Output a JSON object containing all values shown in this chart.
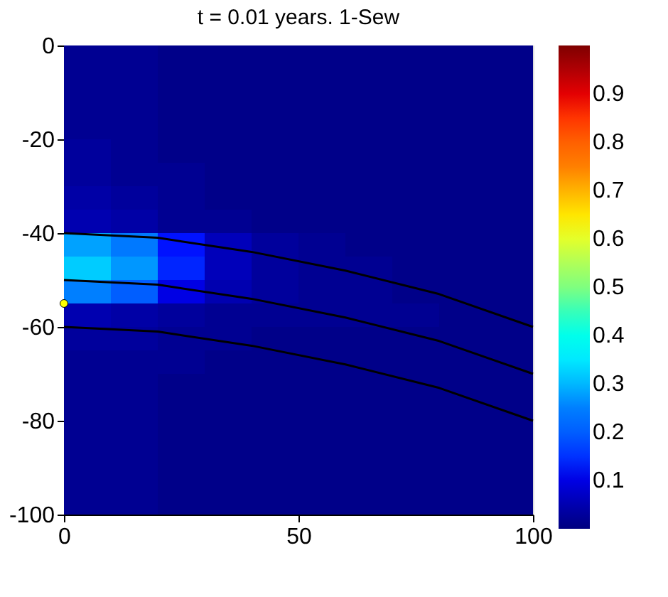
{
  "chart_data": {
    "type": "heatmap",
    "title": "t = 0.01 years. 1-Sew",
    "x": [
      5,
      15,
      25,
      35,
      45,
      55,
      65,
      75,
      85,
      95
    ],
    "cells": [
      [
        0.02,
        0.02,
        0.01,
        0.01,
        0.01,
        0.01,
        0.01,
        0.01,
        0.01,
        0.01
      ],
      [
        0.02,
        0.02,
        0.01,
        0.01,
        0.01,
        0.01,
        0.01,
        0.01,
        0.01,
        0.01
      ],
      [
        0.02,
        0.02,
        0.01,
        0.01,
        0.01,
        0.01,
        0.01,
        0.01,
        0.01,
        0.01
      ],
      [
        0.02,
        0.02,
        0.01,
        0.01,
        0.01,
        0.01,
        0.01,
        0.01,
        0.01,
        0.01
      ],
      [
        0.03,
        0.02,
        0.01,
        0.01,
        0.01,
        0.01,
        0.01,
        0.01,
        0.01,
        0.01
      ],
      [
        0.03,
        0.02,
        0.02,
        0.01,
        0.01,
        0.01,
        0.01,
        0.01,
        0.01,
        0.01
      ],
      [
        0.04,
        0.03,
        0.02,
        0.01,
        0.01,
        0.01,
        0.01,
        0.01,
        0.01,
        0.01
      ],
      [
        0.05,
        0.04,
        0.02,
        0.02,
        0.01,
        0.01,
        0.01,
        0.01,
        0.01,
        0.01
      ],
      [
        0.28,
        0.24,
        0.13,
        0.06,
        0.03,
        0.02,
        0.01,
        0.01,
        0.01,
        0.01
      ],
      [
        0.32,
        0.27,
        0.14,
        0.06,
        0.03,
        0.02,
        0.02,
        0.01,
        0.01,
        0.01
      ],
      [
        0.25,
        0.2,
        0.1,
        0.05,
        0.03,
        0.02,
        0.02,
        0.01,
        0.01,
        0.01
      ],
      [
        0.05,
        0.04,
        0.03,
        0.02,
        0.02,
        0.02,
        0.02,
        0.02,
        0.01,
        0.01
      ],
      [
        0.03,
        0.03,
        0.02,
        0.02,
        0.01,
        0.01,
        0.01,
        0.01,
        0.01,
        0.01
      ],
      [
        0.02,
        0.02,
        0.02,
        0.01,
        0.01,
        0.01,
        0.01,
        0.01,
        0.01,
        0.01
      ],
      [
        0.02,
        0.02,
        0.01,
        0.01,
        0.01,
        0.01,
        0.01,
        0.01,
        0.01,
        0.01
      ],
      [
        0.02,
        0.02,
        0.01,
        0.01,
        0.01,
        0.01,
        0.01,
        0.01,
        0.01,
        0.01
      ],
      [
        0.02,
        0.02,
        0.01,
        0.01,
        0.01,
        0.01,
        0.01,
        0.01,
        0.01,
        0.01
      ],
      [
        0.02,
        0.02,
        0.01,
        0.01,
        0.01,
        0.01,
        0.01,
        0.01,
        0.01,
        0.01
      ],
      [
        0.02,
        0.02,
        0.01,
        0.01,
        0.01,
        0.01,
        0.01,
        0.01,
        0.01,
        0.01
      ],
      [
        0.02,
        0.02,
        0.01,
        0.01,
        0.01,
        0.01,
        0.01,
        0.01,
        0.01,
        0.01
      ]
    ],
    "xlim": [
      0,
      100
    ],
    "xticks": [
      0,
      50,
      100
    ],
    "ylim": [
      -100,
      0
    ],
    "yticks": [
      0,
      -20,
      -40,
      -60,
      -80,
      -100
    ],
    "clim": [
      0,
      1
    ],
    "cticks": [
      0.1,
      0.2,
      0.3,
      0.4,
      0.5,
      0.6,
      0.7,
      0.8,
      0.9
    ],
    "series": [
      {
        "type": "line",
        "color": "#000000",
        "x": [
          0,
          20,
          40,
          60,
          80,
          100
        ],
        "values": [
          -40,
          -41,
          -44,
          -48,
          -53,
          -60
        ]
      },
      {
        "type": "line",
        "color": "#000000",
        "x": [
          0,
          20,
          40,
          60,
          80,
          100
        ],
        "values": [
          -50,
          -51,
          -54,
          -58,
          -63,
          -70
        ]
      },
      {
        "type": "line",
        "color": "#000000",
        "x": [
          0,
          20,
          40,
          60,
          80,
          100
        ],
        "values": [
          -60,
          -61,
          -64,
          -68,
          -73,
          -80
        ]
      },
      {
        "type": "scatter",
        "color": "#ffff00",
        "x": [
          0
        ],
        "values": [
          -55
        ]
      }
    ]
  }
}
